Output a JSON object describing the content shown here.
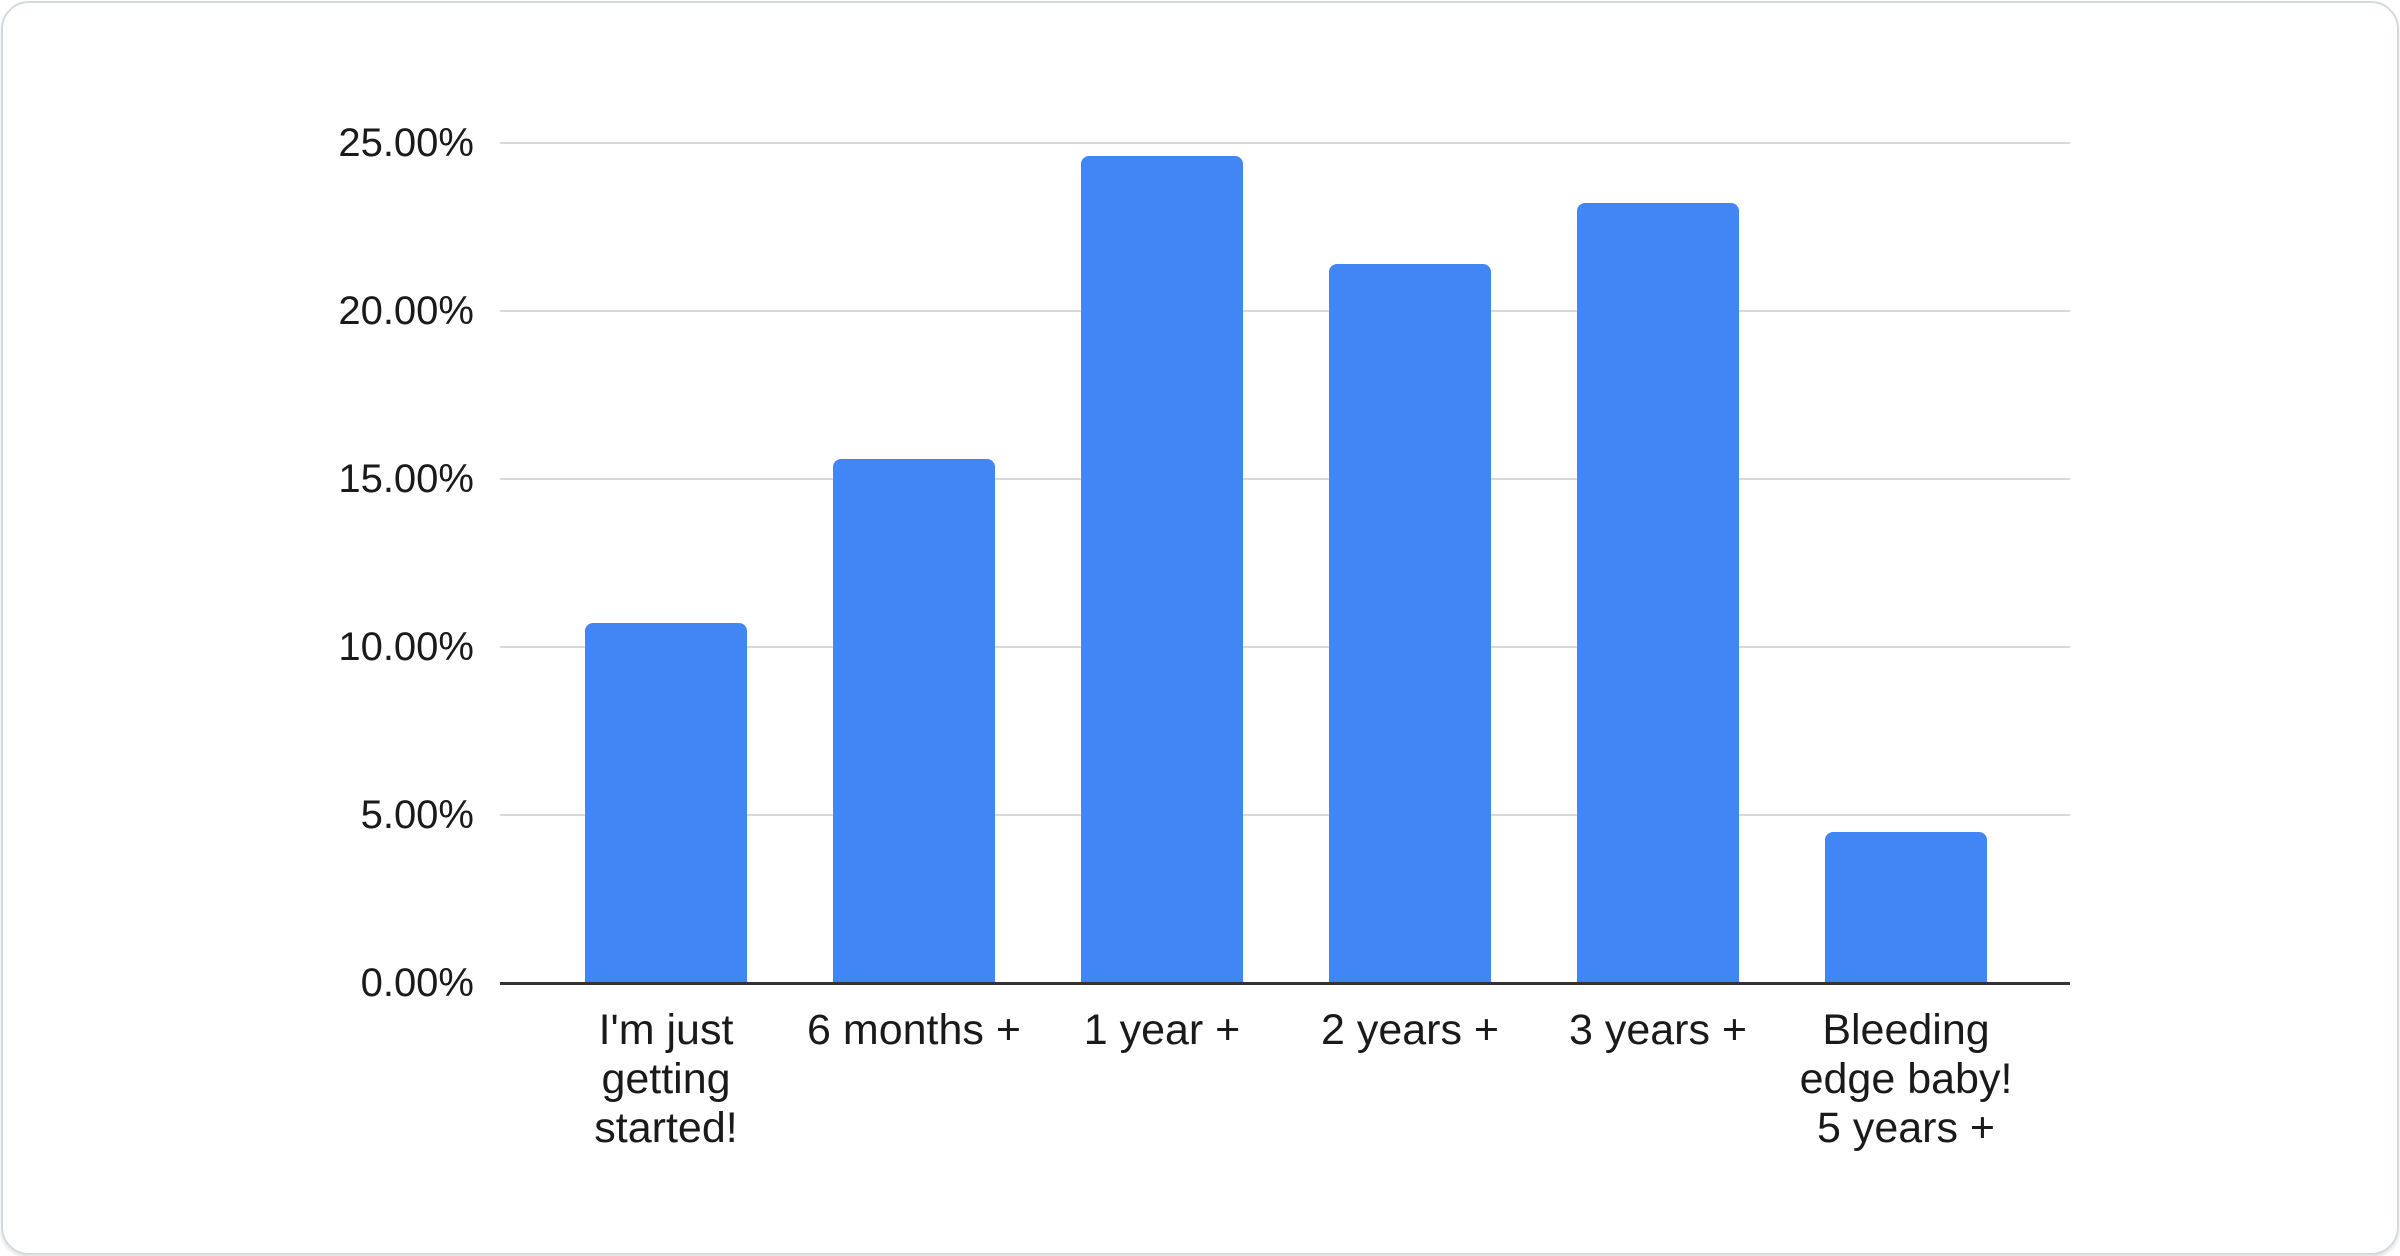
{
  "chart_data": {
    "type": "bar",
    "title": "",
    "xlabel": "",
    "ylabel": "",
    "legend": "none",
    "grid": true,
    "ylim": [
      0,
      25
    ],
    "unit": "%",
    "categories": [
      "I'm just getting started!",
      "6 months +",
      "1 year +",
      "2 years +",
      "3 years +",
      "Bleeding edge baby! 5 years +"
    ],
    "categories_display": [
      "I'm just\ngetting\nstarted!",
      "6 months +",
      "1 year +",
      "2 years +",
      "3 years +",
      "Bleeding\nedge baby!\n5 years +"
    ],
    "values": [
      10.7,
      15.6,
      24.6,
      21.4,
      23.2,
      4.5
    ],
    "value_labels": [
      "10.70%",
      "15.60%",
      "24.60%",
      "21.40%",
      "23.20%",
      "4.50%"
    ],
    "y_ticks": [
      {
        "label": "0.00%",
        "value": 0
      },
      {
        "label": "5.00%",
        "value": 5
      },
      {
        "label": "10.00%",
        "value": 10
      },
      {
        "label": "15.00%",
        "value": 15
      },
      {
        "label": "20.00%",
        "value": 20
      },
      {
        "label": "25.00%",
        "value": 25
      }
    ],
    "bar_color": "#4285F4",
    "gridline_color": "#D9D9D9",
    "axis_color": "#333333",
    "text_color": "#1A1A1A",
    "card_border_color": "#D6DAE0",
    "background_color": "#FFFFFF"
  }
}
